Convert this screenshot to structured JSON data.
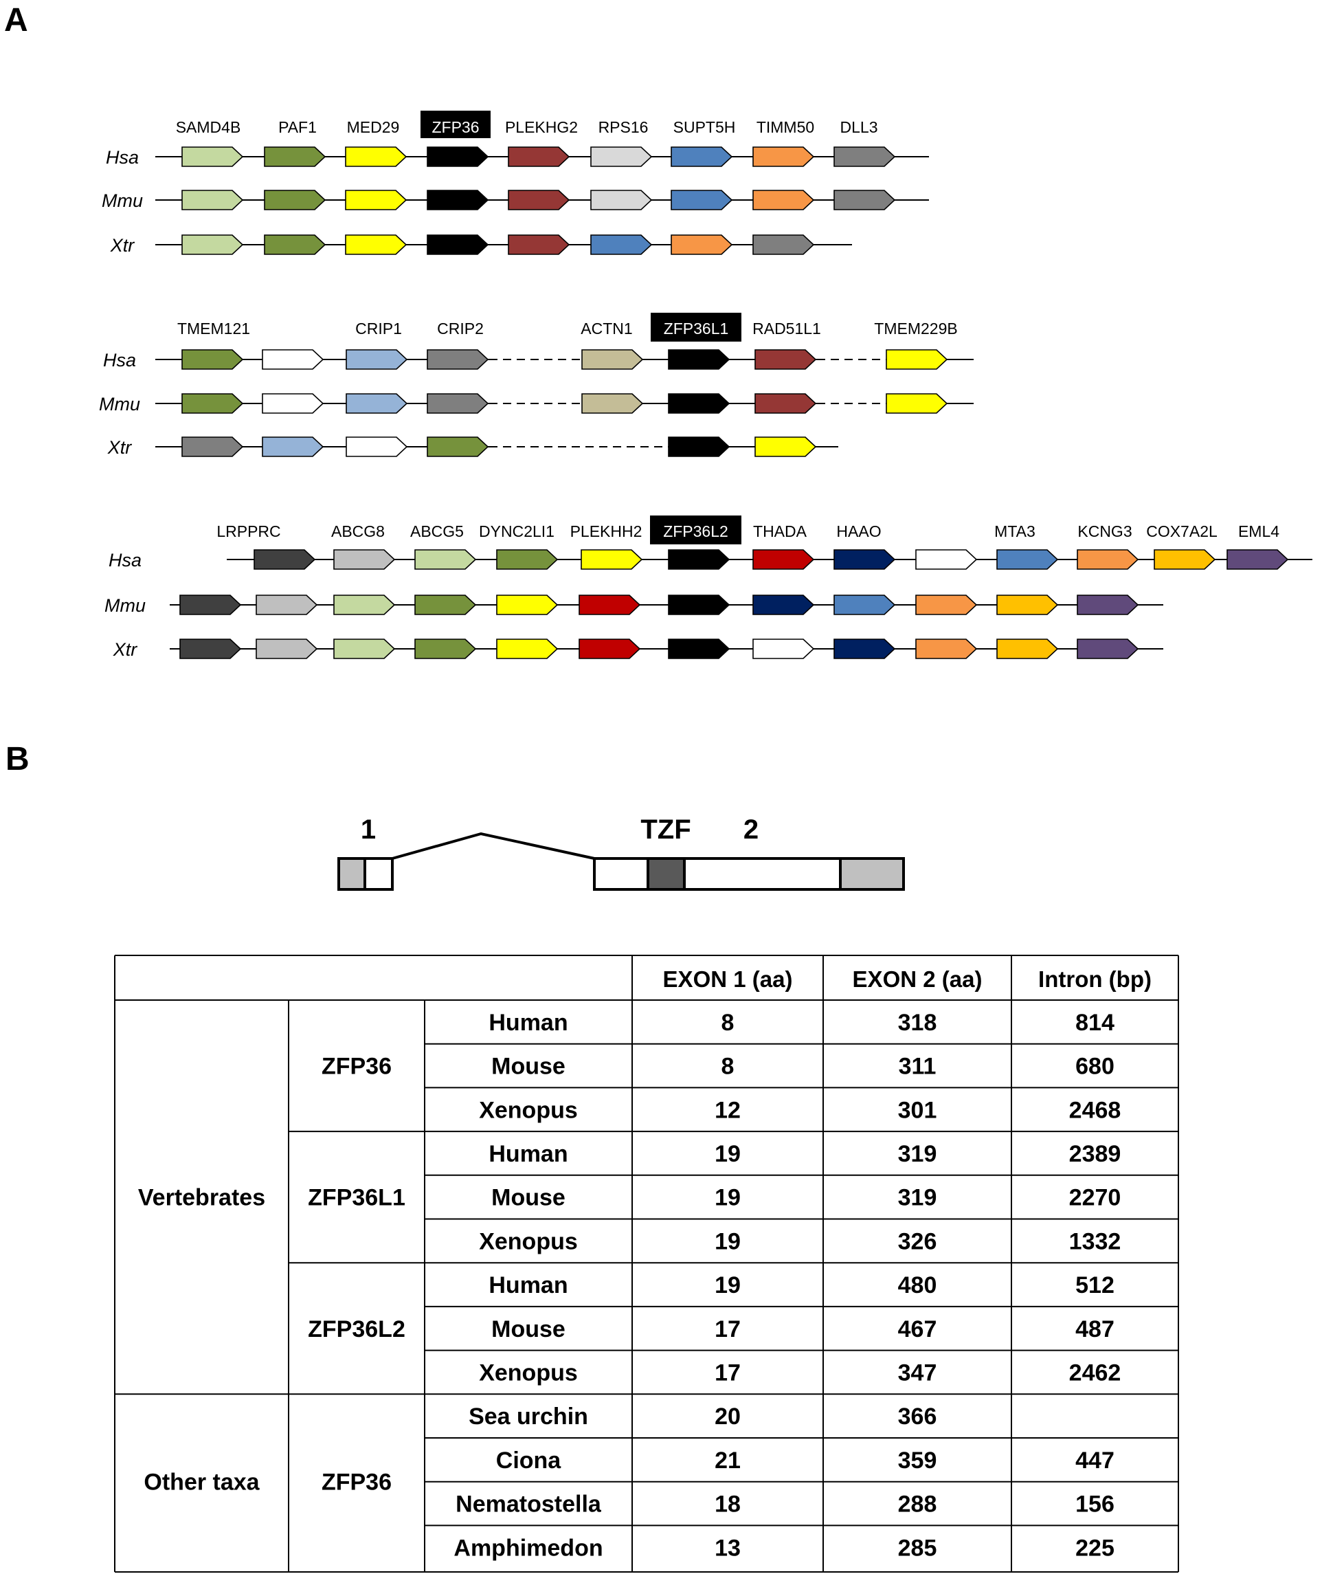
{
  "panels": {
    "a": "A",
    "b": "B"
  },
  "colors": {
    "pale_green": "#c4d9a0",
    "olive": "#76923c",
    "yellow": "#ffff00",
    "black": "#000000",
    "brown_red": "#953735",
    "light_gray": "#d9d9d9",
    "blue": "#4f81bd",
    "orange": "#f79646",
    "gray": "#7f7f7f",
    "light_blue": "#95b3d7",
    "tan": "#c4bd97",
    "white": "#ffffff",
    "dark_gray": "#404040",
    "silver": "#bfbfbf",
    "red": "#c00000",
    "navy": "#002060",
    "gold": "#ffc000",
    "purple": "#604a7b",
    "exon_utr": "#c0c0c0",
    "tzf_box": "#595959"
  },
  "synteny": [
    {
      "labels": [
        {
          "text": "SAMD4B"
        },
        {
          "text": "PAF1"
        },
        {
          "text": "MED29"
        },
        {
          "text": "ZFP36",
          "highlight": true
        },
        {
          "text": "PLEKHG2"
        },
        {
          "text": "RPS16"
        },
        {
          "text": "SUPT5H"
        },
        {
          "text": "TIMM50"
        },
        {
          "text": "DLL3"
        }
      ],
      "rows": [
        {
          "species": "Hsa",
          "genes": [
            "pale_green",
            "olive",
            "yellow",
            "black",
            "brown_red",
            "light_gray",
            "blue",
            "orange",
            "gray"
          ]
        },
        {
          "species": "Mmu",
          "genes": [
            "pale_green",
            "olive",
            "yellow",
            "black",
            "brown_red",
            "light_gray",
            "blue",
            "orange",
            "gray"
          ]
        },
        {
          "species": "Xtr",
          "genes": [
            "pale_green",
            "olive",
            "yellow",
            "black",
            "brown_red",
            "blue",
            "orange",
            "gray"
          ]
        }
      ]
    },
    {
      "labels": [
        {
          "text": "TMEM121"
        },
        {
          "text": "CRIP1"
        },
        {
          "text": "CRIP2"
        },
        {
          "text": "ACTN1"
        },
        {
          "text": "ZFP36L1",
          "highlight": true
        },
        {
          "text": "RAD51L1"
        },
        {
          "text": "TMEM229B"
        }
      ],
      "rows": [
        {
          "species": "Hsa",
          "genes": [
            "olive",
            "white",
            "light_blue",
            "gray",
            "tan",
            "black",
            "brown_red",
            "yellow"
          ]
        },
        {
          "species": "Mmu",
          "genes": [
            "olive",
            "white",
            "light_blue",
            "gray",
            "tan",
            "black",
            "brown_red",
            "yellow"
          ]
        },
        {
          "species": "Xtr",
          "genes": [
            "gray",
            "light_blue",
            "white",
            "olive",
            "black",
            "yellow"
          ]
        }
      ]
    },
    {
      "labels": [
        {
          "text": "LRPPRC"
        },
        {
          "text": "ABCG8"
        },
        {
          "text": "ABCG5"
        },
        {
          "text": "DYNC2LI1"
        },
        {
          "text": "PLEKHH2"
        },
        {
          "text": "ZFP36L2",
          "highlight": true
        },
        {
          "text": "THADA"
        },
        {
          "text": "HAAO"
        },
        {
          "text": "MTA3"
        },
        {
          "text": "KCNG3"
        },
        {
          "text": "COX7A2L"
        },
        {
          "text": "EML4"
        }
      ],
      "rows": [
        {
          "species": "Hsa",
          "genes": [
            "dark_gray",
            "silver",
            "pale_green",
            "olive",
            "yellow",
            "black",
            "red",
            "navy",
            "white",
            "blue",
            "orange",
            "gold",
            "purple"
          ]
        },
        {
          "species": "Mmu",
          "genes": [
            "dark_gray",
            "silver",
            "pale_green",
            "olive",
            "yellow",
            "red",
            "black",
            "navy",
            "blue",
            "orange",
            "gold",
            "purple"
          ]
        },
        {
          "species": "Xtr",
          "genes": [
            "dark_gray",
            "silver",
            "pale_green",
            "olive",
            "yellow",
            "red",
            "black",
            "white",
            "navy",
            "orange",
            "gold",
            "purple"
          ]
        }
      ]
    }
  ],
  "gene_structure": {
    "exon1_label": "1",
    "tzf_label": "TZF",
    "exon2_label": "2"
  },
  "table": {
    "headers": [
      "EXON  1 (aa)",
      "EXON 2  (aa)",
      "Intron  (bp)"
    ],
    "groups": [
      {
        "taxon": "Vertebrates",
        "genes": [
          {
            "name": "ZFP36",
            "rows": [
              {
                "species": "Human",
                "exon1": "8",
                "exon2": "318",
                "intron": "814"
              },
              {
                "species": "Mouse",
                "exon1": "8",
                "exon2": "311",
                "intron": "680"
              },
              {
                "species": "Xenopus",
                "exon1": "12",
                "exon2": "301",
                "intron": "2468"
              }
            ]
          },
          {
            "name": "ZFP36L1",
            "rows": [
              {
                "species": "Human",
                "exon1": "19",
                "exon2": "319",
                "intron": "2389"
              },
              {
                "species": "Mouse",
                "exon1": "19",
                "exon2": "319",
                "intron": "2270"
              },
              {
                "species": "Xenopus",
                "exon1": "19",
                "exon2": "326",
                "intron": "1332"
              }
            ]
          },
          {
            "name": "ZFP36L2",
            "rows": [
              {
                "species": "Human",
                "exon1": "19",
                "exon2": "480",
                "intron": "512"
              },
              {
                "species": "Mouse",
                "exon1": "17",
                "exon2": "467",
                "intron": "487"
              },
              {
                "species": "Xenopus",
                "exon1": "17",
                "exon2": "347",
                "intron": "2462"
              }
            ]
          }
        ]
      },
      {
        "taxon": "Other taxa",
        "genes": [
          {
            "name": "ZFP36",
            "rows": [
              {
                "species": "Sea urchin",
                "exon1": "20",
                "exon2": "366",
                "intron": ""
              },
              {
                "species": "Ciona",
                "exon1": "21",
                "exon2": "359",
                "intron": "447"
              },
              {
                "species": "Nematostella",
                "exon1": "18",
                "exon2": "288",
                "intron": "156"
              },
              {
                "species": "Amphimedon",
                "exon1": "13",
                "exon2": "285",
                "intron": "225"
              }
            ]
          }
        ]
      }
    ]
  }
}
